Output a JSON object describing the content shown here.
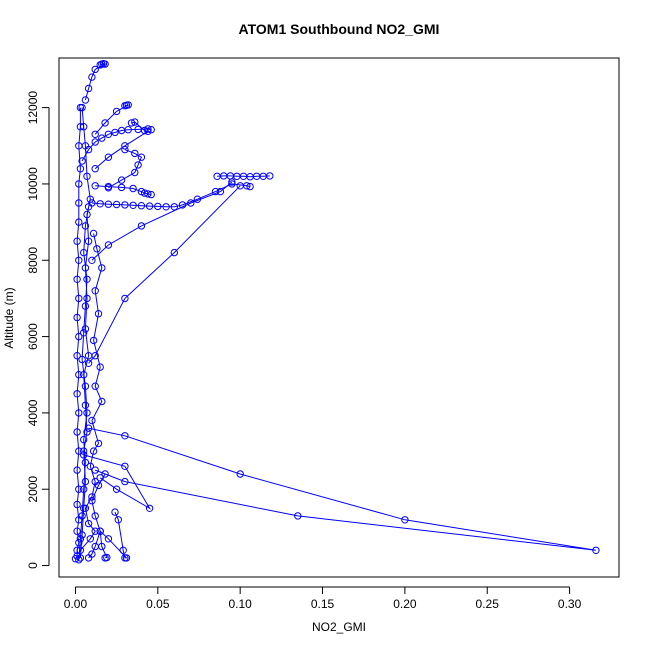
{
  "chart_data": {
    "type": "line",
    "title": "ATOM1 Southbound NO2_GMI",
    "xlabel": "NO2_GMI",
    "ylabel": "Altitude (m)",
    "xlim": [
      -0.01,
      0.33
    ],
    "ylim": [
      -300,
      13300
    ],
    "x_ticks": [
      0.0,
      0.05,
      0.1,
      0.15,
      0.2,
      0.25,
      0.3
    ],
    "x_tick_labels": [
      "0.00",
      "0.05",
      "0.10",
      "0.15",
      "0.20",
      "0.25",
      "0.30"
    ],
    "y_ticks": [
      0,
      2000,
      4000,
      6000,
      8000,
      10000,
      12000
    ],
    "y_tick_labels": [
      "0",
      "2000",
      "4000",
      "6000",
      "8000",
      "10000",
      "12000"
    ],
    "series_color": "#0000FF",
    "marker": "open-circle",
    "grid": false,
    "legend": "none",
    "series": [
      {
        "values": [
          [
            0.003,
            200
          ],
          [
            0.004,
            800
          ],
          [
            0.005,
            1500
          ],
          [
            0.006,
            2200
          ],
          [
            0.005,
            3000
          ],
          [
            0.007,
            3500
          ],
          [
            0.006,
            4200
          ],
          [
            0.005,
            5000
          ],
          [
            0.008,
            5500
          ],
          [
            0.006,
            6200
          ],
          [
            0.007,
            7000
          ],
          [
            0.006,
            7800
          ],
          [
            0.008,
            8500
          ],
          [
            0.007,
            9200
          ],
          [
            0.009,
            9600
          ],
          [
            0.007,
            10200
          ],
          [
            0.006,
            11000
          ],
          [
            0.005,
            11500
          ],
          [
            0.004,
            12000
          ]
        ]
      },
      {
        "values": [
          [
            0.002,
            150
          ],
          [
            0.003,
            700
          ],
          [
            0.004,
            1300
          ],
          [
            0.005,
            2000
          ],
          [
            0.006,
            2700
          ],
          [
            0.005,
            3300
          ],
          [
            0.007,
            4000
          ],
          [
            0.006,
            4700
          ],
          [
            0.004,
            5400
          ],
          [
            0.005,
            6100
          ],
          [
            0.006,
            6800
          ],
          [
            0.007,
            7500
          ],
          [
            0.005,
            8200
          ],
          [
            0.006,
            8900
          ],
          [
            0.008,
            9400
          ]
        ]
      },
      {
        "values": [
          [
            0.01,
            9500
          ],
          [
            0.015,
            9480
          ],
          [
            0.02,
            9470
          ],
          [
            0.025,
            9460
          ],
          [
            0.03,
            9450
          ],
          [
            0.035,
            9440
          ],
          [
            0.04,
            9430
          ],
          [
            0.045,
            9420
          ],
          [
            0.05,
            9410
          ],
          [
            0.055,
            9400
          ],
          [
            0.06,
            9400
          ],
          [
            0.065,
            9450
          ],
          [
            0.074,
            9600
          ],
          [
            0.085,
            9800
          ],
          [
            0.095,
            10000
          ],
          [
            0.104,
            9950
          ],
          [
            0.106,
            9930
          ]
        ]
      },
      {
        "values": [
          [
            0.012,
            9950
          ],
          [
            0.02,
            9930
          ],
          [
            0.028,
            9910
          ],
          [
            0.035,
            9880
          ],
          [
            0.04,
            9800
          ],
          [
            0.042,
            9760
          ],
          [
            0.044,
            9740
          ],
          [
            0.046,
            9720
          ]
        ]
      },
      {
        "values": [
          [
            0.086,
            10200
          ],
          [
            0.09,
            10210
          ],
          [
            0.094,
            10210
          ],
          [
            0.098,
            10200
          ],
          [
            0.102,
            10200
          ],
          [
            0.106,
            10190
          ],
          [
            0.11,
            10200
          ],
          [
            0.114,
            10200
          ],
          [
            0.118,
            10210
          ]
        ]
      },
      {
        "values": [
          [
            0.095,
            10050
          ],
          [
            0.088,
            9800
          ],
          [
            0.07,
            9500
          ],
          [
            0.04,
            8900
          ],
          [
            0.02,
            8400
          ],
          [
            0.01,
            8000
          ]
        ]
      },
      {
        "values": [
          [
            0.1,
            9950
          ],
          [
            0.06,
            8200
          ],
          [
            0.03,
            7000
          ],
          [
            0.012,
            5500
          ],
          [
            0.008,
            5300
          ]
        ]
      },
      {
        "values": [
          [
            0.008,
            3600
          ],
          [
            0.03,
            3400
          ],
          [
            0.1,
            2400
          ],
          [
            0.2,
            1200
          ],
          [
            0.316,
            400
          ],
          [
            0.135,
            1300
          ],
          [
            0.03,
            2200
          ],
          [
            0.012,
            2500
          ]
        ]
      },
      {
        "values": [
          [
            0.005,
            2900
          ],
          [
            0.03,
            2600
          ],
          [
            0.045,
            1500
          ],
          [
            0.025,
            2000
          ],
          [
            0.015,
            2300
          ]
        ]
      },
      {
        "values": [
          [
            0.015,
            13120
          ],
          [
            0.016,
            13140
          ],
          [
            0.017,
            13150
          ],
          [
            0.018,
            13140
          ],
          [
            0.012,
            13000
          ],
          [
            0.01,
            12800
          ],
          [
            0.008,
            12500
          ],
          [
            0.006,
            12200
          ]
        ]
      },
      {
        "values": [
          [
            0.03,
            12050
          ],
          [
            0.031,
            12060
          ],
          [
            0.032,
            12070
          ],
          [
            0.025,
            11900
          ],
          [
            0.018,
            11600
          ],
          [
            0.012,
            11300
          ]
        ]
      },
      {
        "values": [
          [
            0.034,
            11600
          ],
          [
            0.036,
            11620
          ],
          [
            0.042,
            11400
          ],
          [
            0.044,
            11380
          ],
          [
            0.03,
            11000
          ],
          [
            0.02,
            10700
          ],
          [
            0.012,
            10400
          ]
        ]
      },
      {
        "values": [
          [
            0.03,
            10900
          ],
          [
            0.036,
            10800
          ],
          [
            0.04,
            10700
          ],
          [
            0.038,
            10500
          ],
          [
            0.036,
            10300
          ],
          [
            0.028,
            10100
          ],
          [
            0.02,
            9900
          ]
        ]
      },
      {
        "values": [
          [
            0.024,
            1400
          ],
          [
            0.026,
            1200
          ],
          [
            0.029,
            400
          ],
          [
            0.03,
            200
          ],
          [
            0.031,
            200
          ],
          [
            0.02,
            700
          ],
          [
            0.015,
            900
          ],
          [
            0.012,
            500
          ],
          [
            0.01,
            300
          ],
          [
            0.008,
            200
          ]
        ]
      },
      {
        "values": [
          [
            0.018,
            200
          ],
          [
            0.019,
            210
          ],
          [
            0.016,
            500
          ],
          [
            0.015,
            900
          ],
          [
            0.012,
            1300
          ],
          [
            0.01,
            1700
          ],
          [
            0.014,
            2100
          ],
          [
            0.018,
            2400
          ]
        ]
      },
      {
        "values": [
          [
            0.0,
            180
          ],
          [
            0.001,
            250
          ],
          [
            0.001,
            400
          ],
          [
            0.002,
            600
          ],
          [
            0.001,
            900
          ],
          [
            0.002,
            1200
          ],
          [
            0.001,
            1600
          ],
          [
            0.002,
            2000
          ],
          [
            0.001,
            2500
          ],
          [
            0.002,
            3000
          ],
          [
            0.001,
            3500
          ],
          [
            0.002,
            4000
          ],
          [
            0.001,
            4500
          ],
          [
            0.002,
            5000
          ],
          [
            0.001,
            5500
          ],
          [
            0.002,
            6000
          ],
          [
            0.001,
            6500
          ],
          [
            0.002,
            7000
          ],
          [
            0.001,
            7500
          ],
          [
            0.002,
            8000
          ],
          [
            0.001,
            8500
          ],
          [
            0.002,
            9000
          ],
          [
            0.002,
            9500
          ],
          [
            0.002,
            10000
          ],
          [
            0.003,
            10400
          ],
          [
            0.002,
            11000
          ],
          [
            0.003,
            11500
          ],
          [
            0.003,
            12000
          ]
        ]
      },
      {
        "values": [
          [
            0.003,
            400
          ],
          [
            0.009,
            700
          ],
          [
            0.012,
            900
          ],
          [
            0.008,
            1100
          ],
          [
            0.006,
            1500
          ],
          [
            0.01,
            1800
          ],
          [
            0.012,
            2200
          ],
          [
            0.009,
            2600
          ],
          [
            0.011,
            3000
          ],
          [
            0.014,
            3200
          ],
          [
            0.01,
            3800
          ],
          [
            0.016,
            4300
          ],
          [
            0.012,
            4700
          ],
          [
            0.015,
            5200
          ],
          [
            0.011,
            5900
          ],
          [
            0.014,
            6600
          ],
          [
            0.012,
            7200
          ],
          [
            0.016,
            7800
          ],
          [
            0.013,
            8300
          ],
          [
            0.011,
            8700
          ]
        ]
      },
      {
        "values": [
          [
            0.004,
            10600
          ],
          [
            0.008,
            10900
          ],
          [
            0.012,
            11100
          ],
          [
            0.016,
            11200
          ],
          [
            0.02,
            11300
          ],
          [
            0.024,
            11350
          ],
          [
            0.028,
            11400
          ],
          [
            0.032,
            11420
          ],
          [
            0.038,
            11430
          ],
          [
            0.044,
            11440
          ],
          [
            0.046,
            11420
          ]
        ]
      }
    ]
  }
}
